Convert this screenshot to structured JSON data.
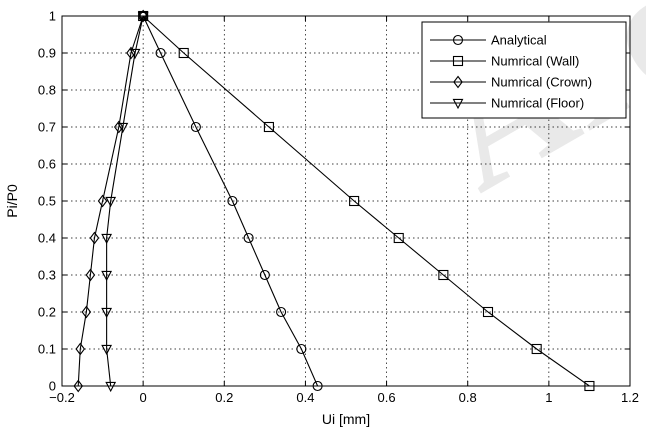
{
  "watermark": "Arc",
  "chart_data": {
    "type": "line",
    "xlabel": "Ui [mm]",
    "ylabel": "Pi/P0",
    "xlim": [
      -0.2,
      1.2
    ],
    "ylim": [
      0,
      1
    ],
    "xticks": [
      "−0.2",
      "0",
      "0.2",
      "0.4",
      "0.6",
      "0.8",
      "1",
      "1.2"
    ],
    "xtick_values": [
      -0.2,
      0,
      0.2,
      0.4,
      0.6,
      0.8,
      1,
      1.2
    ],
    "yticks": [
      "0",
      "0.1",
      "0.2",
      "0.3",
      "0.4",
      "0.5",
      "0.6",
      "0.7",
      "0.8",
      "0.9",
      "1"
    ],
    "ytick_values": [
      0,
      0.1,
      0.2,
      0.3,
      0.4,
      0.5,
      0.6,
      0.7,
      0.8,
      0.9,
      1
    ],
    "grid": true,
    "legend_position": "top-right",
    "series": [
      {
        "name": "Analytical",
        "marker": "circle",
        "points": [
          [
            0,
            1
          ],
          [
            0.043,
            0.9
          ],
          [
            0.13,
            0.7
          ],
          [
            0.22,
            0.5
          ],
          [
            0.26,
            0.4
          ],
          [
            0.3,
            0.3
          ],
          [
            0.34,
            0.2
          ],
          [
            0.39,
            0.1
          ],
          [
            0.43,
            0
          ]
        ]
      },
      {
        "name": "Numrical (Wall)",
        "marker": "square",
        "points": [
          [
            0,
            1
          ],
          [
            0.1,
            0.9
          ],
          [
            0.31,
            0.7
          ],
          [
            0.52,
            0.5
          ],
          [
            0.63,
            0.4
          ],
          [
            0.74,
            0.3
          ],
          [
            0.85,
            0.2
          ],
          [
            0.97,
            0.1
          ],
          [
            1.1,
            0
          ]
        ]
      },
      {
        "name": "Numrical (Crown)",
        "marker": "diamond",
        "points": [
          [
            0,
            1
          ],
          [
            -0.03,
            0.9
          ],
          [
            -0.06,
            0.7
          ],
          [
            -0.1,
            0.5
          ],
          [
            -0.12,
            0.4
          ],
          [
            -0.13,
            0.3
          ],
          [
            -0.14,
            0.2
          ],
          [
            -0.155,
            0.1
          ],
          [
            -0.16,
            0
          ]
        ]
      },
      {
        "name": "Numrical (Floor)",
        "marker": "triangle-down",
        "points": [
          [
            0,
            1
          ],
          [
            -0.02,
            0.9
          ],
          [
            -0.05,
            0.7
          ],
          [
            -0.08,
            0.5
          ],
          [
            -0.09,
            0.4
          ],
          [
            -0.09,
            0.3
          ],
          [
            -0.09,
            0.2
          ],
          [
            -0.09,
            0.1
          ],
          [
            -0.08,
            0
          ]
        ]
      }
    ]
  }
}
